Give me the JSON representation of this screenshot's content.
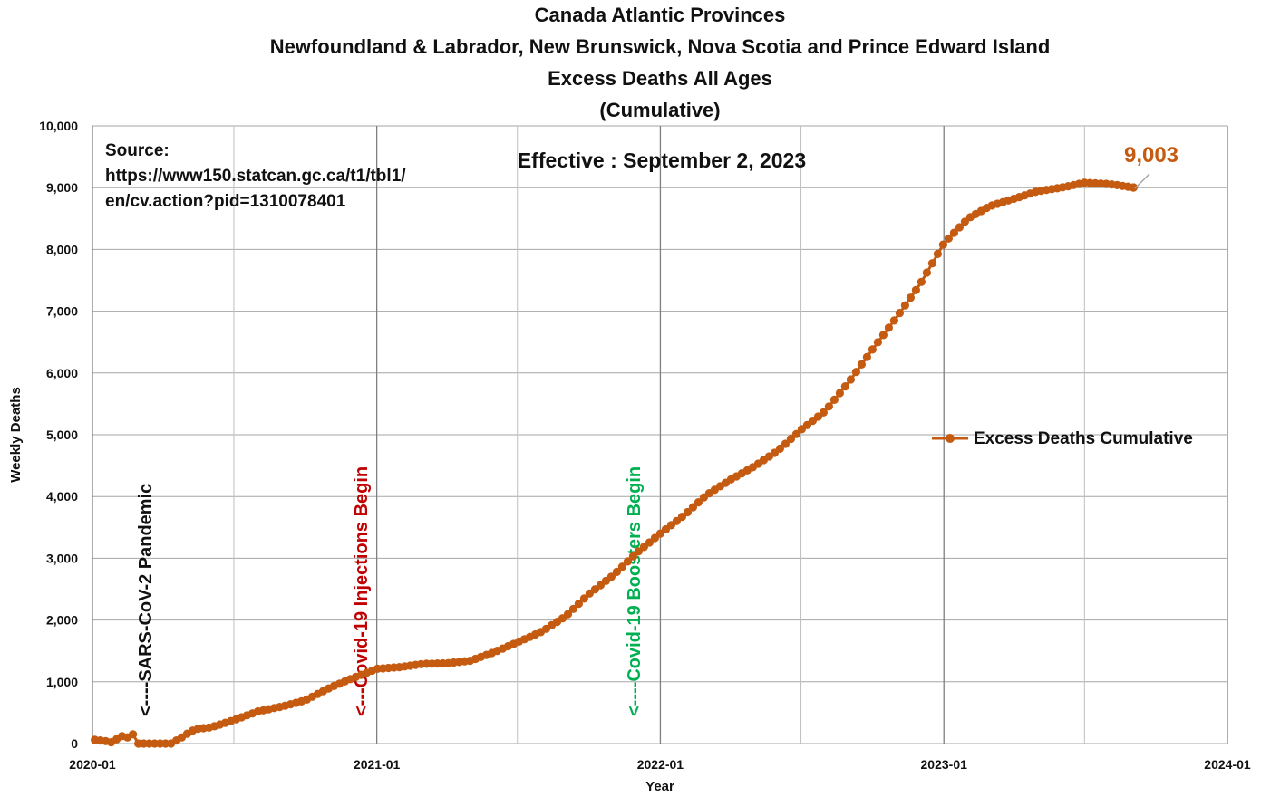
{
  "chart_data": {
    "type": "line",
    "title_lines": [
      "Canada Atlantic Provinces",
      "Newfoundland & Labrador, New Brunswick, Nova Scotia and Prince Edward Island",
      "Excess Deaths All Ages",
      "(Cumulative)"
    ],
    "xlabel": "Year",
    "ylabel": "Weekly Deaths",
    "ylim": [
      0,
      10000
    ],
    "y_ticks": [
      0,
      1000,
      2000,
      3000,
      4000,
      5000,
      6000,
      7000,
      8000,
      9000,
      10000
    ],
    "y_tick_labels": [
      "0",
      "1,000",
      "2,000",
      "3,000",
      "4,000",
      "5,000",
      "6,000",
      "7,000",
      "8,000",
      "9,000",
      "10,000"
    ],
    "x_range": [
      "2020-01-01",
      "2024-01-01"
    ],
    "x_ticks": [
      "2020-01",
      "2021-01",
      "2022-01",
      "2023-01",
      "2024-01"
    ],
    "grid": true,
    "legend": {
      "position": "right",
      "label": "Excess Deaths Cumulative"
    },
    "series": [
      {
        "name": "Excess Deaths Cumulative",
        "color": "#c55a11",
        "anchors": [
          [
            "2020-01-04",
            60
          ],
          [
            "2020-01-11",
            50
          ],
          [
            "2020-01-18",
            40
          ],
          [
            "2020-01-25",
            20
          ],
          [
            "2020-02-01",
            70
          ],
          [
            "2020-02-08",
            120
          ],
          [
            "2020-02-15",
            100
          ],
          [
            "2020-02-22",
            150
          ],
          [
            "2020-02-29",
            0
          ],
          [
            "2020-03-07",
            -30
          ],
          [
            "2020-03-14",
            -50
          ],
          [
            "2020-03-21",
            -60
          ],
          [
            "2020-03-28",
            -50
          ],
          [
            "2020-04-04",
            -40
          ],
          [
            "2020-04-11",
            -20
          ],
          [
            "2020-04-18",
            50
          ],
          [
            "2020-04-25",
            100
          ],
          [
            "2020-05-02",
            160
          ],
          [
            "2020-05-09",
            210
          ],
          [
            "2020-05-16",
            240
          ],
          [
            "2020-06-01",
            260
          ],
          [
            "2020-07-01",
            380
          ],
          [
            "2020-08-01",
            520
          ],
          [
            "2020-09-01",
            600
          ],
          [
            "2020-10-01",
            700
          ],
          [
            "2020-11-01",
            900
          ],
          [
            "2020-12-01",
            1060
          ],
          [
            "2021-01-01",
            1210
          ],
          [
            "2021-02-01",
            1240
          ],
          [
            "2021-03-01",
            1290
          ],
          [
            "2021-04-01",
            1300
          ],
          [
            "2021-05-01",
            1340
          ],
          [
            "2021-06-01",
            1480
          ],
          [
            "2021-07-01",
            1640
          ],
          [
            "2021-08-01",
            1810
          ],
          [
            "2021-09-01",
            2060
          ],
          [
            "2021-10-01",
            2420
          ],
          [
            "2021-11-01",
            2720
          ],
          [
            "2021-12-01",
            3080
          ],
          [
            "2022-01-01",
            3400
          ],
          [
            "2022-02-01",
            3700
          ],
          [
            "2022-03-01",
            4020
          ],
          [
            "2022-04-01",
            4270
          ],
          [
            "2022-05-01",
            4480
          ],
          [
            "2022-06-01",
            4740
          ],
          [
            "2022-07-01",
            5080
          ],
          [
            "2022-08-01",
            5380
          ],
          [
            "2022-09-01",
            5860
          ],
          [
            "2022-10-01",
            6380
          ],
          [
            "2022-11-01",
            6900
          ],
          [
            "2022-12-01",
            7430
          ],
          [
            "2023-01-01",
            8100
          ],
          [
            "2023-02-01",
            8500
          ],
          [
            "2023-03-01",
            8700
          ],
          [
            "2023-04-01",
            8820
          ],
          [
            "2023-05-01",
            8940
          ],
          [
            "2023-06-01",
            9000
          ],
          [
            "2023-07-01",
            9080
          ],
          [
            "2023-08-01",
            9060
          ],
          [
            "2023-09-02",
            9003
          ]
        ]
      }
    ],
    "last_value_label": "9,003",
    "annotations": [
      {
        "text": "<----SARS-CoV-2 Pandemic",
        "date": "2020-03-11",
        "color": "#111111"
      },
      {
        "text": "<---Covid-19 Injections Begin",
        "date": "2020-12-14",
        "color": "#c00000"
      },
      {
        "text": "<----Covid-19 Boosters Begin",
        "date": "2021-11-30",
        "color": "#00b050"
      }
    ],
    "effective_text": "Effective : September 2, 2023",
    "source_lines": [
      "Source:",
      "https://www150.statcan.gc.ca/t1/tbl1/",
      "en/cv.action?pid=1310078401"
    ]
  }
}
